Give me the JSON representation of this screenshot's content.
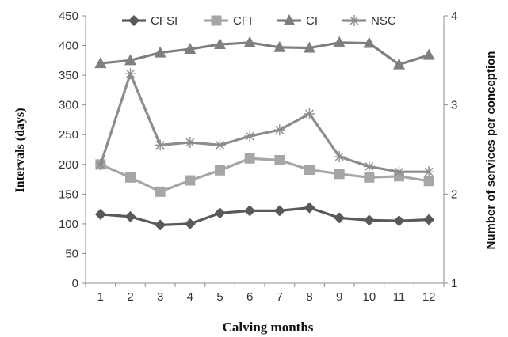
{
  "chart_data": {
    "type": "line",
    "xlabel": "Calving months",
    "ylabel": "Intervals (days)",
    "y2label": "Number of services per conception",
    "x": [
      1,
      2,
      3,
      4,
      5,
      6,
      7,
      8,
      9,
      10,
      11,
      12
    ],
    "x_tick_labels": [
      "1",
      "2",
      "3",
      "4",
      "5",
      "6",
      "7",
      "8",
      "9",
      "10",
      "11",
      "12"
    ],
    "ylim": [
      0,
      450
    ],
    "y_ticks": [
      0,
      50,
      100,
      150,
      200,
      250,
      300,
      350,
      400,
      450
    ],
    "y_tick_labels": [
      "0",
      "50",
      "100",
      "150",
      "200",
      "250",
      "300",
      "350",
      "400",
      "450"
    ],
    "y2lim": [
      1,
      4
    ],
    "y2_ticks": [
      1,
      2,
      3,
      4
    ],
    "y2_tick_labels": [
      "1",
      "2",
      "3",
      "4"
    ],
    "grid": false,
    "legend_placement": "top",
    "series": [
      {
        "name": "CFSI",
        "axis": "left",
        "marker": "diamond",
        "color": "#595959",
        "values": [
          116,
          112,
          98,
          100,
          118,
          122,
          122,
          127,
          110,
          106,
          105,
          107
        ]
      },
      {
        "name": "CFI",
        "axis": "left",
        "marker": "square",
        "color": "#a6a6a6",
        "values": [
          200,
          178,
          154,
          173,
          190,
          210,
          207,
          191,
          184,
          178,
          180,
          172
        ]
      },
      {
        "name": "CI",
        "axis": "left",
        "marker": "triangle",
        "color": "#7f7f7f",
        "values": [
          370,
          375,
          388,
          394,
          402,
          405,
          397,
          396,
          405,
          404,
          368,
          384
        ]
      },
      {
        "name": "NSC",
        "axis": "right",
        "marker": "star",
        "color": "#8c8c8c",
        "values": [
          2.33,
          3.35,
          2.55,
          2.58,
          2.55,
          2.65,
          2.72,
          2.9,
          2.42,
          2.31,
          2.25,
          2.25
        ]
      }
    ]
  }
}
